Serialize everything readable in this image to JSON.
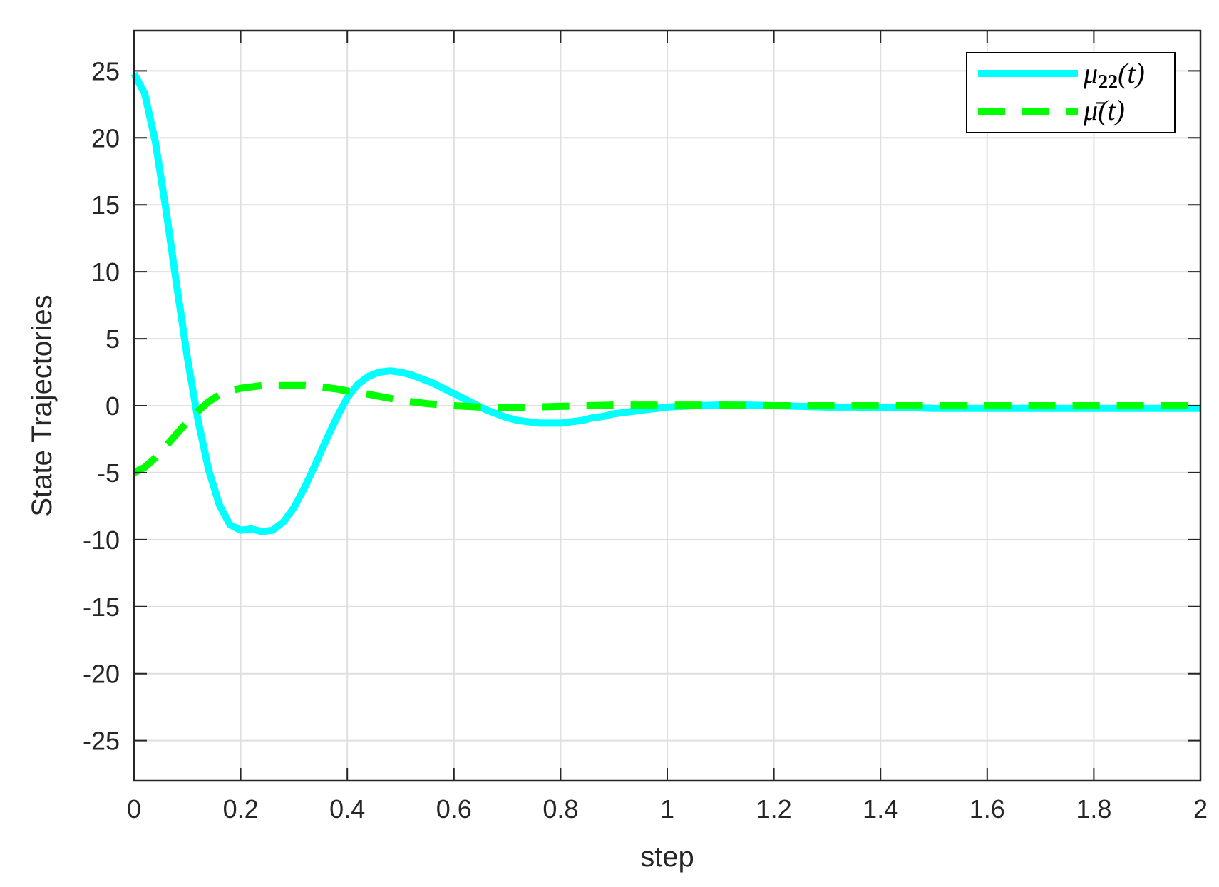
{
  "chart_data": {
    "type": "line",
    "xlabel": "step",
    "ylabel": "State Trajectories",
    "xlim": [
      0,
      2
    ],
    "ylim": [
      -28,
      28
    ],
    "grid": true,
    "legend_placement": "top-right",
    "xticks": [
      0,
      0.2,
      0.4,
      0.6,
      0.8,
      1,
      1.2,
      1.4,
      1.6,
      1.8,
      2
    ],
    "xtick_labels": [
      "0",
      "0.2",
      "0.4",
      "0.6",
      "0.8",
      "1",
      "1.2",
      "1.4",
      "1.6",
      "1.8",
      "2"
    ],
    "yticks": [
      25,
      20,
      15,
      10,
      5,
      0,
      -5,
      -10,
      -15,
      -20,
      -25
    ],
    "ytick_labels": [
      "25",
      "20",
      "15",
      "10",
      "5",
      "0",
      "-5",
      "-10",
      "-15",
      "-20",
      "-25"
    ],
    "series": [
      {
        "name": "μ22(t)",
        "legend_main": "μ",
        "legend_sub": "22",
        "legend_tail": "(t)",
        "color": "#00ffff",
        "style": "solid",
        "x": [
          0,
          0.02,
          0.04,
          0.06,
          0.08,
          0.1,
          0.12,
          0.14,
          0.16,
          0.18,
          0.2,
          0.22,
          0.24,
          0.26,
          0.28,
          0.3,
          0.32,
          0.34,
          0.36,
          0.38,
          0.4,
          0.42,
          0.44,
          0.46,
          0.48,
          0.5,
          0.52,
          0.54,
          0.56,
          0.58,
          0.6,
          0.62,
          0.64,
          0.66,
          0.68,
          0.7,
          0.72,
          0.74,
          0.76,
          0.78,
          0.8,
          0.82,
          0.84,
          0.86,
          0.88,
          0.9,
          0.92,
          0.94,
          0.96,
          0.98,
          1.0,
          1.05,
          1.1,
          1.15,
          1.2,
          1.25,
          1.3,
          1.35,
          1.4,
          1.45,
          1.5,
          1.6,
          1.7,
          1.8,
          1.9,
          2.0
        ],
        "y": [
          24.8,
          23.3,
          19.7,
          14.6,
          9.0,
          3.6,
          -1.1,
          -4.8,
          -7.4,
          -8.9,
          -9.3,
          -9.2,
          -9.4,
          -9.3,
          -8.7,
          -7.6,
          -6.1,
          -4.4,
          -2.6,
          -0.9,
          0.6,
          1.6,
          2.2,
          2.5,
          2.6,
          2.5,
          2.3,
          2.0,
          1.7,
          1.3,
          0.9,
          0.5,
          0.1,
          -0.3,
          -0.6,
          -0.9,
          -1.1,
          -1.2,
          -1.3,
          -1.3,
          -1.3,
          -1.2,
          -1.1,
          -0.9,
          -0.8,
          -0.6,
          -0.5,
          -0.4,
          -0.3,
          -0.2,
          -0.1,
          0.0,
          0.05,
          0.05,
          0.0,
          -0.05,
          -0.1,
          -0.1,
          -0.15,
          -0.15,
          -0.2,
          -0.2,
          -0.2,
          -0.2,
          -0.2,
          -0.2
        ]
      },
      {
        "name": "μ̄(t)",
        "legend_main": "μ̄",
        "legend_sub": "",
        "legend_tail": "(t)",
        "color": "#00ff00",
        "style": "dashed",
        "x": [
          0,
          0.02,
          0.04,
          0.06,
          0.08,
          0.1,
          0.12,
          0.14,
          0.16,
          0.18,
          0.2,
          0.22,
          0.24,
          0.26,
          0.28,
          0.3,
          0.32,
          0.34,
          0.36,
          0.38,
          0.4,
          0.42,
          0.44,
          0.46,
          0.48,
          0.5,
          0.55,
          0.6,
          0.65,
          0.7,
          0.75,
          0.8,
          0.85,
          0.9,
          0.95,
          1.0,
          1.1,
          1.2,
          1.3,
          1.4,
          1.5,
          1.6,
          1.7,
          1.8,
          1.9,
          2.0
        ],
        "y": [
          -5.0,
          -4.6,
          -3.9,
          -3.0,
          -2.1,
          -1.2,
          -0.4,
          0.3,
          0.8,
          1.1,
          1.3,
          1.4,
          1.5,
          1.5,
          1.5,
          1.5,
          1.5,
          1.45,
          1.35,
          1.25,
          1.1,
          1.0,
          0.85,
          0.7,
          0.55,
          0.4,
          0.15,
          0.0,
          -0.1,
          -0.15,
          -0.1,
          -0.05,
          0.0,
          0.05,
          0.05,
          0.05,
          0.05,
          0.0,
          0.0,
          0.0,
          0.0,
          0.0,
          0.0,
          0.0,
          0.0,
          0.0
        ]
      }
    ]
  }
}
